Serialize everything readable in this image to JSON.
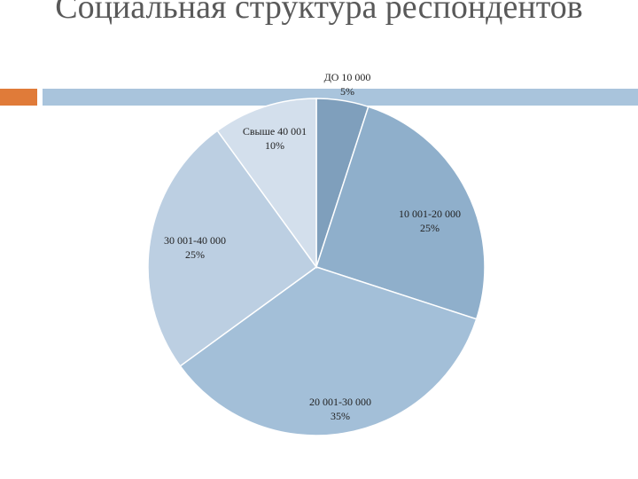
{
  "slide": {
    "title": "Социальная структура респондентов",
    "accent_color": "#e07b39",
    "bar_color": "#a9c4dc"
  },
  "chart_data": {
    "type": "pie",
    "title": "Социальная структура респондентов",
    "slices": [
      {
        "label": "ДО 10 000",
        "value": 5,
        "value_label": "5%",
        "color": "#7f9fbc"
      },
      {
        "label": "10 001-20 000",
        "value": 25,
        "value_label": "25%",
        "color": "#8fafcb"
      },
      {
        "label": "20 001-30 000",
        "value": 35,
        "value_label": "35%",
        "color": "#a3bfd8"
      },
      {
        "label": "30 001-40 000",
        "value": 25,
        "value_label": "25%",
        "color": "#bccfe2"
      },
      {
        "label": "Свыше 40 001",
        "value": 10,
        "value_label": "10%",
        "color": "#d3dfec"
      }
    ]
  }
}
